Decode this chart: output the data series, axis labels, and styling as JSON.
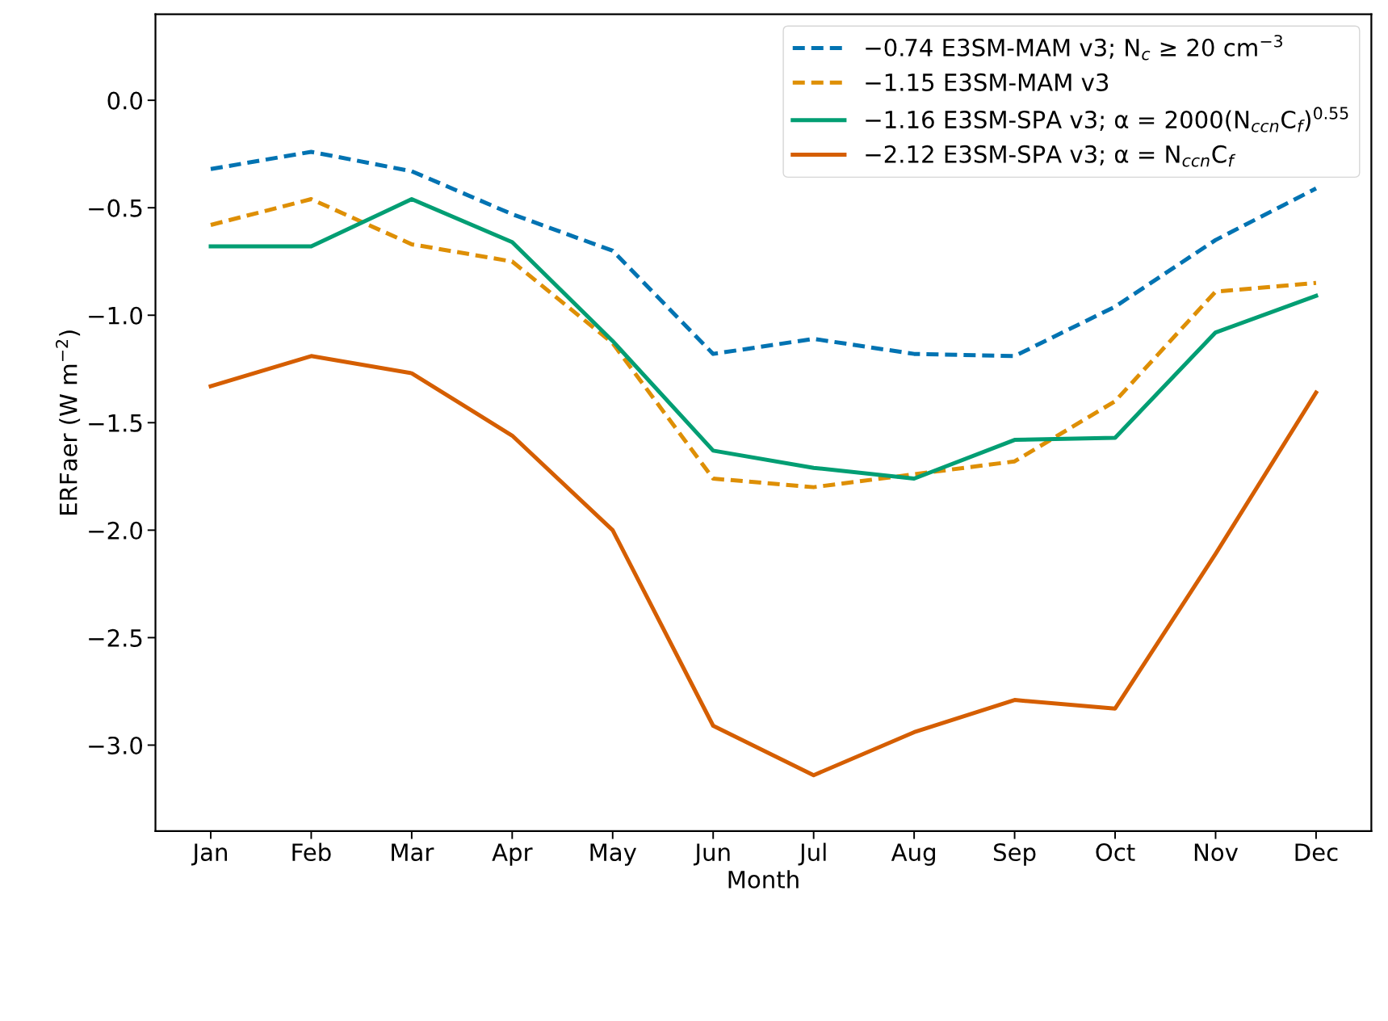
{
  "chart_data": {
    "type": "line",
    "xlabel": "Month",
    "ylabel": "ERFaer (W m$^{−2}$)",
    "categories": [
      "Jan",
      "Feb",
      "Mar",
      "Apr",
      "May",
      "Jun",
      "Jul",
      "Aug",
      "Sep",
      "Oct",
      "Nov",
      "Dec"
    ],
    "series": [
      {
        "name": "−0.74 E3SM-MAM v3; N$_{c}$ ≥ 20 cm$^{−3}$",
        "color": "#0173b2",
        "line_style": "dashed",
        "values": [
          -0.32,
          -0.24,
          -0.33,
          -0.53,
          -0.7,
          -1.18,
          -1.11,
          -1.18,
          -1.19,
          -0.96,
          -0.65,
          -0.41
        ]
      },
      {
        "name": "−1.15 E3SM-MAM v3",
        "color": "#de8f05",
        "line_style": "dashed",
        "values": [
          -0.58,
          -0.46,
          -0.67,
          -0.75,
          -1.13,
          -1.76,
          -1.8,
          -1.74,
          -1.68,
          -1.4,
          -0.89,
          -0.85
        ]
      },
      {
        "name": "−1.16 E3SM-SPA v3; α = 2000(N$_{ccn}$C$_{f}$)$^{0.55}$",
        "color": "#029e73",
        "line_style": "solid",
        "values": [
          -0.68,
          -0.68,
          -0.46,
          -0.66,
          -1.12,
          -1.63,
          -1.71,
          -1.76,
          -1.58,
          -1.57,
          -1.08,
          -0.91
        ]
      },
      {
        "name": "−2.12 E3SM-SPA v3; α = N$_{ccn}$C$_{f}$",
        "color": "#d55e00",
        "line_style": "solid",
        "values": [
          -1.33,
          -1.19,
          -1.27,
          -1.56,
          -2.0,
          -2.91,
          -3.14,
          -2.94,
          -2.79,
          -2.83,
          -2.11,
          -1.36
        ]
      }
    ],
    "ylim": [
      -3.4,
      0.4
    ],
    "yticks": [
      {
        "value": -3.0,
        "label": "−3.0"
      },
      {
        "value": -2.5,
        "label": "−2.5"
      },
      {
        "value": -2.0,
        "label": "−2.0"
      },
      {
        "value": -1.5,
        "label": "−1.5"
      },
      {
        "value": -1.0,
        "label": "−1.0"
      },
      {
        "value": -0.5,
        "label": "−0.5"
      },
      {
        "value": 0.0,
        "label": "0.0"
      }
    ],
    "grid": false,
    "legend": "top right",
    "marker": "none"
  }
}
